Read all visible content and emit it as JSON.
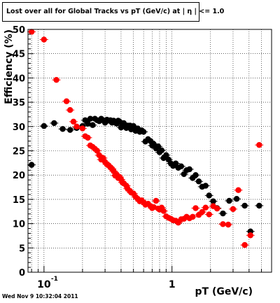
{
  "title": "Lost over all for Global Tracks vs pT (GeV/c) at |  η | <= 1.0",
  "footer": "Wed Nov  9 10:32:04 2011",
  "chart_data": {
    "type": "scatter",
    "title": "Lost over all for Global Tracks vs pT (GeV/c) at |  η | <= 1.0",
    "xlabel": "pT (GeV/c)",
    "ylabel": "Efficiency (%)",
    "xscale": "log",
    "xlim": [
      0.075,
      6.0
    ],
    "ylim": [
      0,
      50
    ],
    "grid": true,
    "x_ticks": [
      {
        "value": 0.1,
        "label": "10",
        "exp": "-1"
      },
      {
        "value": 1,
        "label": "1"
      }
    ],
    "y_ticks": [
      0,
      5,
      10,
      15,
      20,
      25,
      30,
      35,
      40,
      45,
      50
    ],
    "colors": {
      "black": "#000000",
      "red": "#ff0000"
    },
    "series": [
      {
        "color": "black",
        "points": [
          {
            "x": 0.08,
            "y": 22.1
          },
          {
            "x": 0.1,
            "y": 30.1
          },
          {
            "x": 0.12,
            "y": 30.7
          },
          {
            "x": 0.14,
            "y": 29.5
          },
          {
            "x": 0.16,
            "y": 29.3
          },
          {
            "x": 0.18,
            "y": 29.7
          },
          {
            "x": 0.2,
            "y": 30.1
          },
          {
            "x": 0.21,
            "y": 31.3
          },
          {
            "x": 0.22,
            "y": 30.6
          },
          {
            "x": 0.23,
            "y": 31.6
          },
          {
            "x": 0.24,
            "y": 30.3
          },
          {
            "x": 0.25,
            "y": 31.6
          },
          {
            "x": 0.26,
            "y": 31.3
          },
          {
            "x": 0.27,
            "y": 31.1
          },
          {
            "x": 0.28,
            "y": 31.6
          },
          {
            "x": 0.29,
            "y": 31.3
          },
          {
            "x": 0.3,
            "y": 30.8
          },
          {
            "x": 0.31,
            "y": 31.4
          },
          {
            "x": 0.32,
            "y": 31.2
          },
          {
            "x": 0.33,
            "y": 31.3
          },
          {
            "x": 0.34,
            "y": 30.8
          },
          {
            "x": 0.35,
            "y": 31.2
          },
          {
            "x": 0.36,
            "y": 30.8
          },
          {
            "x": 0.37,
            "y": 30.6
          },
          {
            "x": 0.38,
            "y": 31.2
          },
          {
            "x": 0.39,
            "y": 31.0
          },
          {
            "x": 0.4,
            "y": 29.8
          },
          {
            "x": 0.41,
            "y": 30.4
          },
          {
            "x": 0.42,
            "y": 30.7
          },
          {
            "x": 0.44,
            "y": 29.7
          },
          {
            "x": 0.45,
            "y": 30.2
          },
          {
            "x": 0.47,
            "y": 30.2
          },
          {
            "x": 0.48,
            "y": 29.4
          },
          {
            "x": 0.5,
            "y": 30.1
          },
          {
            "x": 0.52,
            "y": 29.1
          },
          {
            "x": 0.54,
            "y": 29.6
          },
          {
            "x": 0.56,
            "y": 28.9
          },
          {
            "x": 0.58,
            "y": 29.2
          },
          {
            "x": 0.6,
            "y": 28.9
          },
          {
            "x": 0.62,
            "y": 26.9
          },
          {
            "x": 0.65,
            "y": 27.4
          },
          {
            "x": 0.68,
            "y": 27.0
          },
          {
            "x": 0.7,
            "y": 26.1
          },
          {
            "x": 0.72,
            "y": 26.4
          },
          {
            "x": 0.75,
            "y": 25.5
          },
          {
            "x": 0.78,
            "y": 25.9
          },
          {
            "x": 0.8,
            "y": 24.7
          },
          {
            "x": 0.83,
            "y": 25.1
          },
          {
            "x": 0.86,
            "y": 23.5
          },
          {
            "x": 0.9,
            "y": 24.1
          },
          {
            "x": 0.94,
            "y": 23.2
          },
          {
            "x": 0.98,
            "y": 22.4
          },
          {
            "x": 1.02,
            "y": 21.9
          },
          {
            "x": 1.07,
            "y": 22.4
          },
          {
            "x": 1.12,
            "y": 21.5
          },
          {
            "x": 1.18,
            "y": 21.8
          },
          {
            "x": 1.24,
            "y": 20.2
          },
          {
            "x": 1.3,
            "y": 21.0
          },
          {
            "x": 1.37,
            "y": 21.2
          },
          {
            "x": 1.45,
            "y": 19.4
          },
          {
            "x": 1.53,
            "y": 20.0
          },
          {
            "x": 1.62,
            "y": 18.7
          },
          {
            "x": 1.72,
            "y": 17.6
          },
          {
            "x": 1.83,
            "y": 17.8
          },
          {
            "x": 1.95,
            "y": 15.8
          },
          {
            "x": 2.1,
            "y": 14.6
          },
          {
            "x": 2.25,
            "y": 13.2
          },
          {
            "x": 2.5,
            "y": 12.1
          },
          {
            "x": 2.8,
            "y": 14.7
          },
          {
            "x": 3.2,
            "y": 15.1
          },
          {
            "x": 3.7,
            "y": 13.7
          },
          {
            "x": 4.1,
            "y": 8.4
          },
          {
            "x": 4.8,
            "y": 13.7
          }
        ]
      },
      {
        "color": "red",
        "points": [
          {
            "x": 0.08,
            "y": 49.5
          },
          {
            "x": 0.1,
            "y": 47.9
          },
          {
            "x": 0.125,
            "y": 39.6
          },
          {
            "x": 0.15,
            "y": 35.2
          },
          {
            "x": 0.16,
            "y": 33.4
          },
          {
            "x": 0.17,
            "y": 31.0
          },
          {
            "x": 0.18,
            "y": 30.0
          },
          {
            "x": 0.2,
            "y": 29.6
          },
          {
            "x": 0.21,
            "y": 28.0
          },
          {
            "x": 0.22,
            "y": 27.7
          },
          {
            "x": 0.23,
            "y": 26.1
          },
          {
            "x": 0.24,
            "y": 25.8
          },
          {
            "x": 0.25,
            "y": 25.4
          },
          {
            "x": 0.26,
            "y": 25.0
          },
          {
            "x": 0.27,
            "y": 24.1
          },
          {
            "x": 0.28,
            "y": 23.2
          },
          {
            "x": 0.29,
            "y": 23.5
          },
          {
            "x": 0.3,
            "y": 22.7
          },
          {
            "x": 0.31,
            "y": 22.2
          },
          {
            "x": 0.32,
            "y": 22.0
          },
          {
            "x": 0.33,
            "y": 21.6
          },
          {
            "x": 0.34,
            "y": 21.3
          },
          {
            "x": 0.35,
            "y": 20.8
          },
          {
            "x": 0.36,
            "y": 19.9
          },
          {
            "x": 0.37,
            "y": 20.1
          },
          {
            "x": 0.38,
            "y": 19.4
          },
          {
            "x": 0.39,
            "y": 19.6
          },
          {
            "x": 0.4,
            "y": 19.1
          },
          {
            "x": 0.41,
            "y": 18.5
          },
          {
            "x": 0.42,
            "y": 18.3
          },
          {
            "x": 0.44,
            "y": 17.8
          },
          {
            "x": 0.45,
            "y": 17.2
          },
          {
            "x": 0.47,
            "y": 16.7
          },
          {
            "x": 0.48,
            "y": 16.4
          },
          {
            "x": 0.5,
            "y": 16.2
          },
          {
            "x": 0.52,
            "y": 15.5
          },
          {
            "x": 0.54,
            "y": 15.1
          },
          {
            "x": 0.56,
            "y": 14.6
          },
          {
            "x": 0.58,
            "y": 14.8
          },
          {
            "x": 0.6,
            "y": 14.4
          },
          {
            "x": 0.62,
            "y": 13.9
          },
          {
            "x": 0.65,
            "y": 14.1
          },
          {
            "x": 0.68,
            "y": 13.6
          },
          {
            "x": 0.7,
            "y": 13.2
          },
          {
            "x": 0.72,
            "y": 13.4
          },
          {
            "x": 0.75,
            "y": 14.7
          },
          {
            "x": 0.78,
            "y": 13.1
          },
          {
            "x": 0.8,
            "y": 12.9
          },
          {
            "x": 0.83,
            "y": 13.3
          },
          {
            "x": 0.86,
            "y": 12.6
          },
          {
            "x": 0.9,
            "y": 11.5
          },
          {
            "x": 0.94,
            "y": 11.2
          },
          {
            "x": 0.98,
            "y": 11.0
          },
          {
            "x": 1.02,
            "y": 10.7
          },
          {
            "x": 1.07,
            "y": 10.6
          },
          {
            "x": 1.12,
            "y": 10.2
          },
          {
            "x": 1.18,
            "y": 10.9
          },
          {
            "x": 1.24,
            "y": 11.0
          },
          {
            "x": 1.3,
            "y": 11.4
          },
          {
            "x": 1.37,
            "y": 11.1
          },
          {
            "x": 1.45,
            "y": 11.4
          },
          {
            "x": 1.53,
            "y": 13.2
          },
          {
            "x": 1.62,
            "y": 11.8
          },
          {
            "x": 1.72,
            "y": 12.4
          },
          {
            "x": 1.83,
            "y": 13.3
          },
          {
            "x": 1.95,
            "y": 11.9
          },
          {
            "x": 2.1,
            "y": 13.6
          },
          {
            "x": 2.25,
            "y": 13.1
          },
          {
            "x": 2.5,
            "y": 9.9
          },
          {
            "x": 2.75,
            "y": 9.8
          },
          {
            "x": 3.0,
            "y": 13.0
          },
          {
            "x": 3.3,
            "y": 16.9
          },
          {
            "x": 3.7,
            "y": 5.6
          },
          {
            "x": 4.1,
            "y": 7.6
          },
          {
            "x": 4.8,
            "y": 26.2
          }
        ]
      }
    ]
  }
}
